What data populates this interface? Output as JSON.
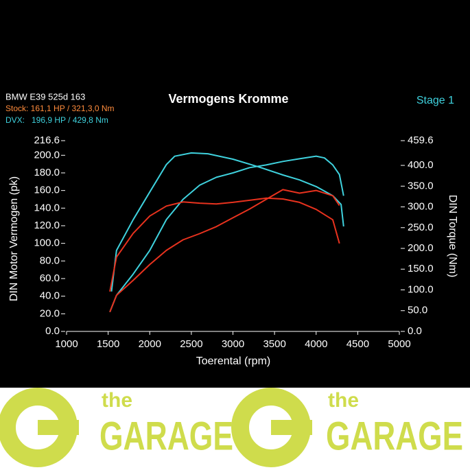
{
  "chart_data": {
    "type": "line",
    "title": "Vermogens Kromme",
    "subtitle": "Stage 1",
    "vehicle": "BMW E39 525d 163",
    "info": [
      "Stock: 161,1 HP / 321,3,0 Nm",
      "DVX:   196,9 HP / 429,8 Nm"
    ],
    "xlabel": "Toerental (rpm)",
    "ylabel": "DIN Motor Vermogen (pk)",
    "y2label": "DIN Torque (Nm)",
    "xlim": [
      1000,
      5000
    ],
    "xticks": [
      1000,
      1500,
      2000,
      2500,
      3000,
      3500,
      4000,
      4500,
      5000
    ],
    "ylim": [
      0,
      216.6
    ],
    "yticks": [
      {
        "value": 0,
        "label": "0.0"
      },
      {
        "value": 20,
        "label": "20.0"
      },
      {
        "value": 40,
        "label": "40.0"
      },
      {
        "value": 60,
        "label": "60.0"
      },
      {
        "value": 80,
        "label": "80.0"
      },
      {
        "value": 100,
        "label": "100.0"
      },
      {
        "value": 120,
        "label": "120.0"
      },
      {
        "value": 140,
        "label": "140.0"
      },
      {
        "value": 160,
        "label": "160.0"
      },
      {
        "value": 180,
        "label": "180.0"
      },
      {
        "value": 200,
        "label": "200.0"
      },
      216.6
    ],
    "y2lim": [
      0,
      459.6
    ],
    "y2ticks": [
      {
        "value": 0,
        "label": "0.0"
      },
      {
        "value": 50,
        "label": "50.0"
      },
      {
        "value": 100,
        "label": "100.0"
      },
      {
        "value": 150,
        "label": "150.0"
      },
      {
        "value": 200,
        "label": "200.0"
      },
      {
        "value": 250,
        "label": "250.0"
      },
      {
        "value": 300,
        "label": "300.0"
      },
      {
        "value": 350,
        "label": "350.0"
      },
      {
        "value": 400,
        "label": "400.0"
      },
      459.6
    ],
    "grid": false,
    "series": [
      {
        "name": "DVX",
        "color": "#3fd2de",
        "axis": "y2",
        "x": [
          1540,
          1600,
          1800,
          2000,
          2200,
          2300,
          2500,
          2700,
          3000,
          3300,
          3600,
          3800,
          4000,
          4200,
          4300,
          4330
        ],
        "values": [
          96,
          195,
          269,
          336,
          402,
          422,
          430,
          428,
          415,
          397,
          377,
          365,
          349,
          327,
          306,
          253
        ]
      },
      {
        "name": "DVX",
        "color": "#3fd2de",
        "axis": "y",
        "x": [
          1520,
          1600,
          1800,
          2000,
          2200,
          2400,
          2600,
          2800,
          3000,
          3200,
          3400,
          3600,
          3800,
          4000,
          4100,
          4200,
          4280,
          4330
        ],
        "values": [
          22,
          41,
          65,
          92,
          127,
          150,
          166,
          175,
          180,
          186,
          189,
          193,
          196,
          199,
          197,
          189,
          178,
          154
        ]
      },
      {
        "name": "Stock",
        "color": "#e8321e",
        "axis": "y2",
        "x": [
          1520,
          1600,
          1800,
          2000,
          2200,
          2400,
          2600,
          2800,
          3000,
          3200,
          3400,
          3600,
          3800,
          4000,
          4200,
          4280
        ],
        "values": [
          96,
          179,
          236,
          278,
          302,
          312,
          309,
          307,
          311,
          316,
          321,
          319,
          311,
          294,
          269,
          212
        ]
      },
      {
        "name": "Stock",
        "color": "#e8321e",
        "axis": "y",
        "x": [
          1520,
          1600,
          1800,
          2000,
          2200,
          2400,
          2600,
          2800,
          3000,
          3200,
          3400,
          3600,
          3800,
          4000,
          4200,
          4280
        ],
        "values": [
          22,
          41,
          58,
          76,
          92,
          104,
          111,
          119,
          129,
          139,
          150,
          161,
          157,
          160,
          154,
          143
        ]
      }
    ]
  },
  "banner": {
    "logos": [
      {
        "small": "the",
        "big": "GARAGE"
      },
      {
        "small": "the",
        "big": "GARAGE"
      }
    ]
  }
}
